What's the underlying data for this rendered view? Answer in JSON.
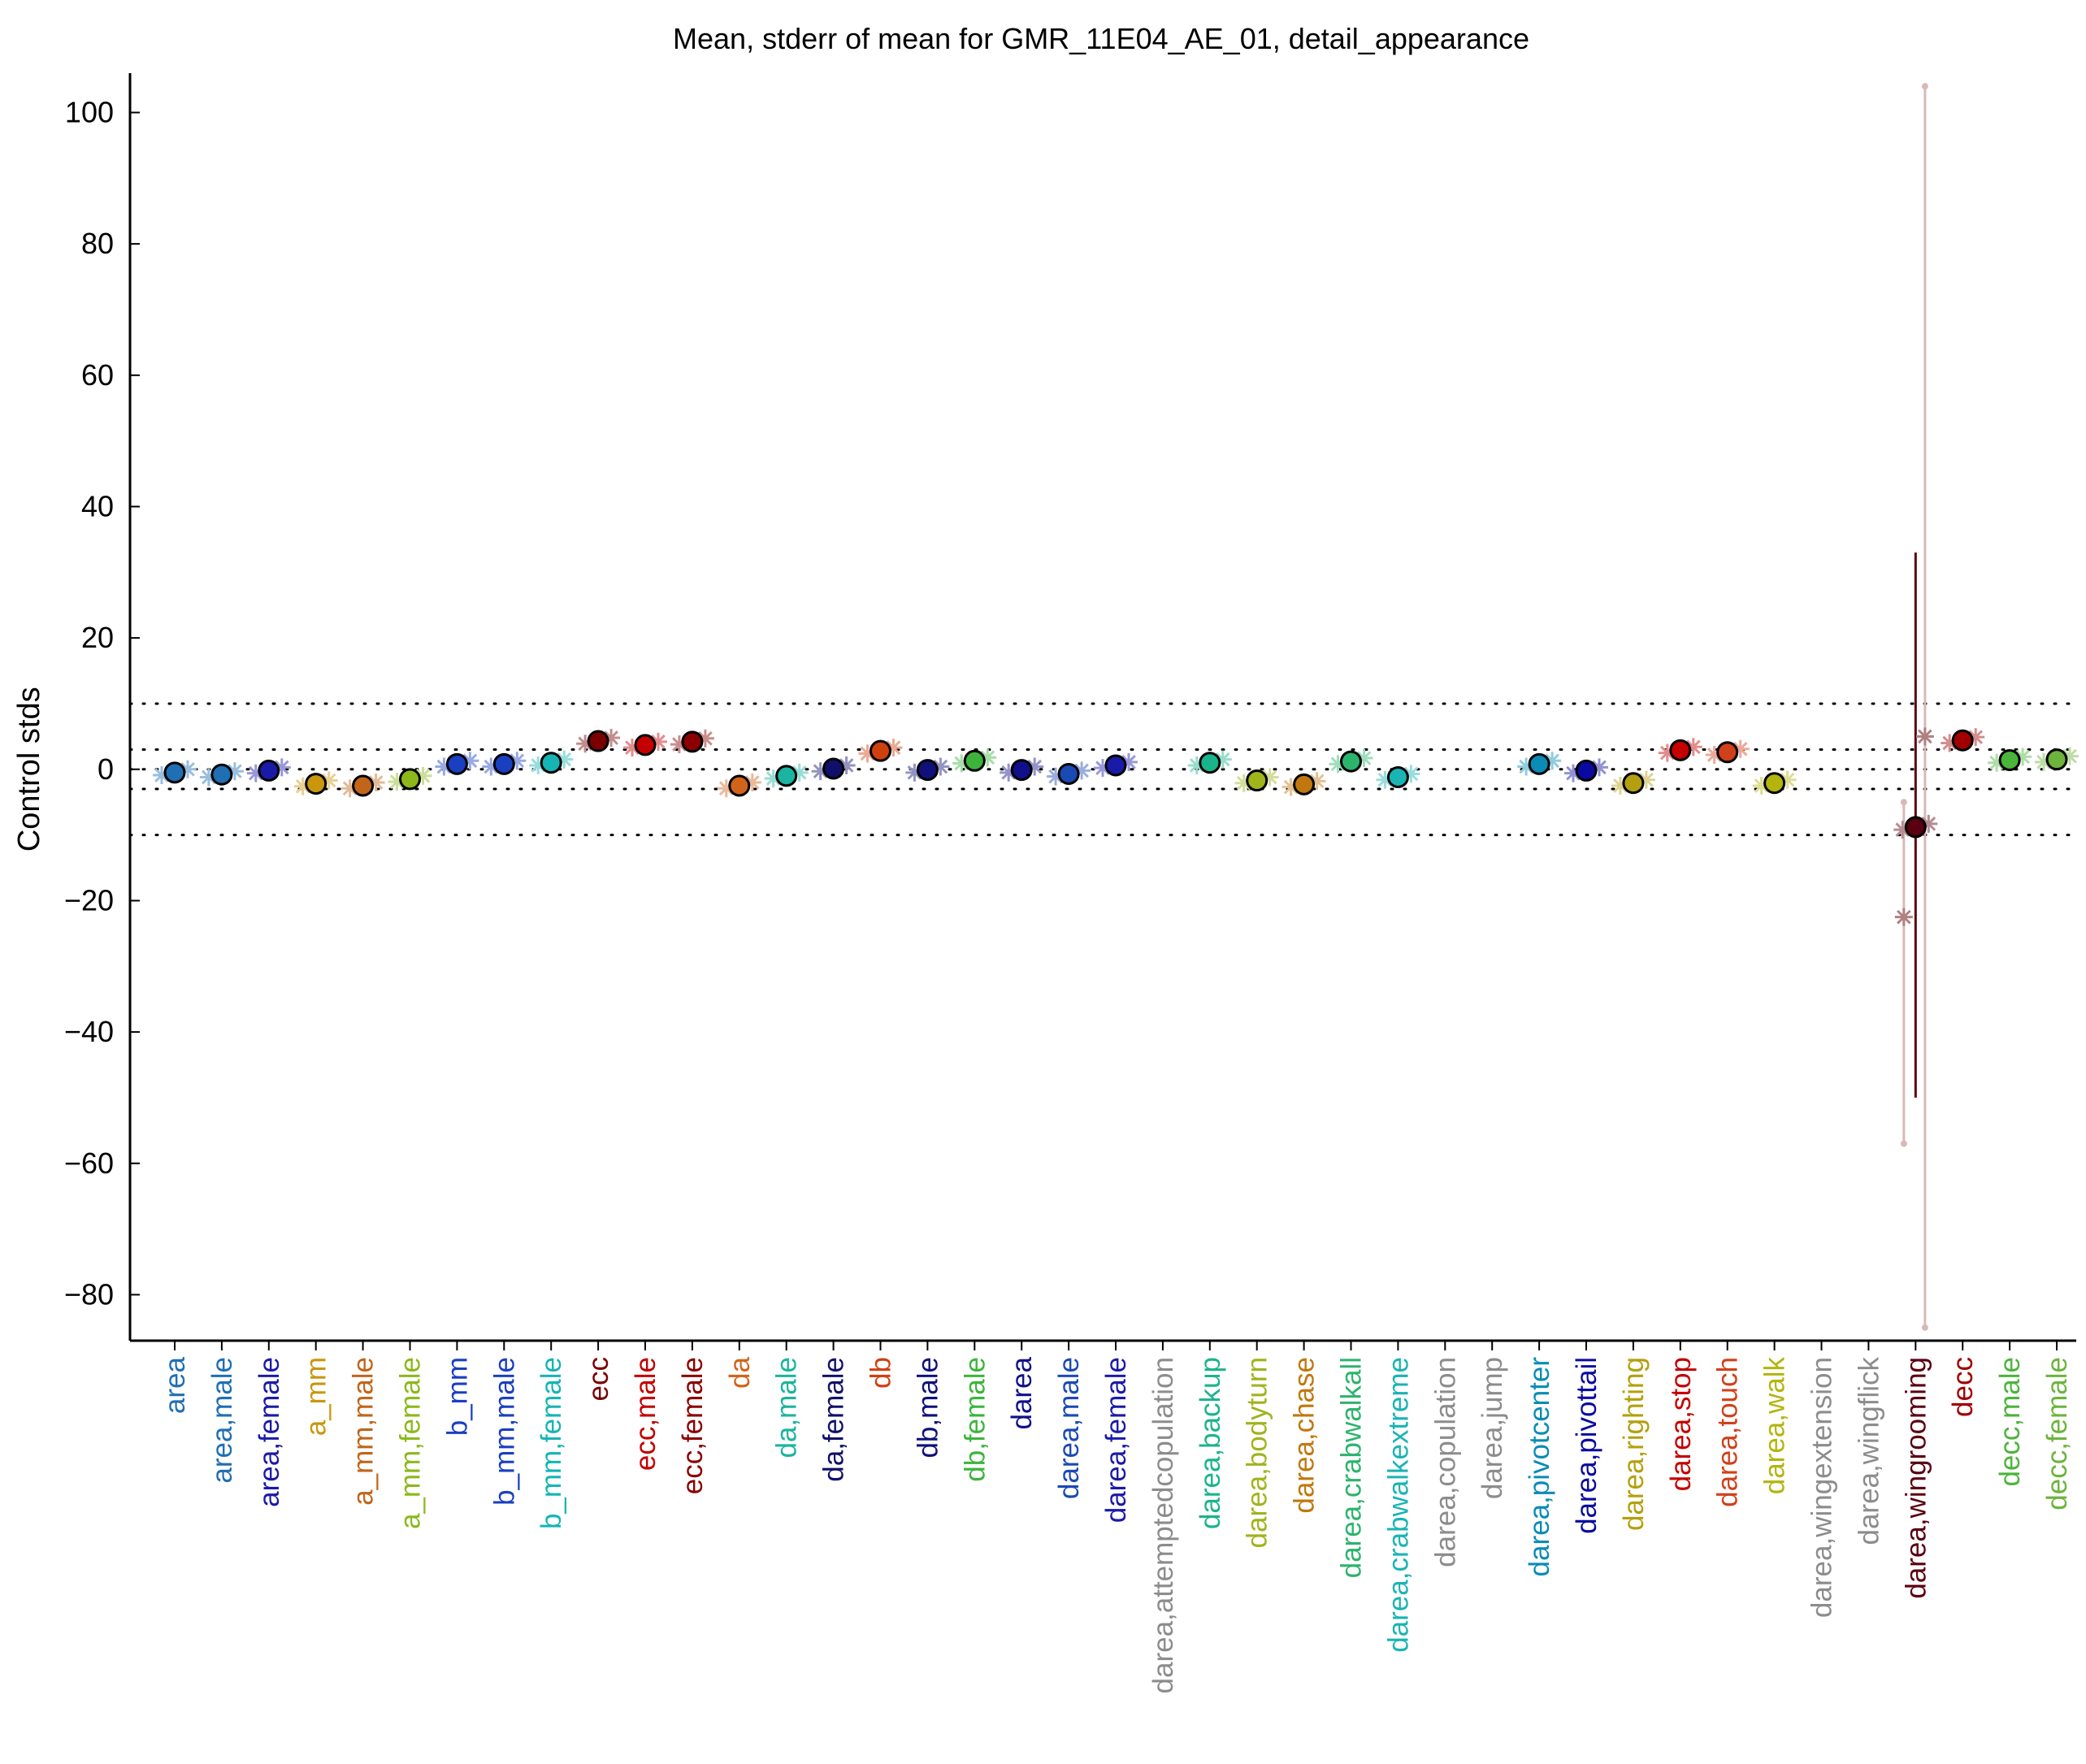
{
  "chart_data": {
    "type": "scatter",
    "title": "Mean, stderr of mean for GMR_11E04_AE_01, detail_appearance",
    "xlabel": "",
    "ylabel": "Control stds",
    "ylim": [
      -87,
      106
    ],
    "yticks": [
      -80,
      -60,
      -40,
      -20,
      0,
      20,
      40,
      60,
      80,
      100
    ],
    "reference_lines": [
      -10,
      -3,
      0,
      3,
      10
    ],
    "grid": false,
    "categories": [
      "area",
      "area,male",
      "area,female",
      "a_mm",
      "a_mm,male",
      "a_mm,female",
      "b_mm",
      "b_mm,male",
      "b_mm,female",
      "ecc",
      "ecc,male",
      "ecc,female",
      "da",
      "da,male",
      "da,female",
      "db",
      "db,male",
      "db,female",
      "darea",
      "darea,male",
      "darea,female",
      "darea,attemptedcopulation",
      "darea,backup",
      "darea,bodyturn",
      "darea,chase",
      "darea,crabwalkall",
      "darea,crabwalkextreme",
      "darea,copulation",
      "darea,jump",
      "darea,pivotcenter",
      "darea,pivottail",
      "darea,righting",
      "darea,stop",
      "darea,touch",
      "darea,walk",
      "darea,wingextension",
      "darea,wingflick",
      "darea,wingrooming",
      "decc",
      "decc,male",
      "decc,female"
    ],
    "label_colors": [
      "#1f6fb4",
      "#1f6fb4",
      "#1a1aa8",
      "#c9960e",
      "#c0651a",
      "#8cb81c",
      "#1a3fc0",
      "#1a3fc0",
      "#16b4b4",
      "#7a0000",
      "#c40000",
      "#8a0000",
      "#d0641a",
      "#1ab4a0",
      "#10106a",
      "#d0400e",
      "#10107a",
      "#3cb43c",
      "#10108a",
      "#1a4ab4",
      "#1a1aa8",
      "#8c8c8c",
      "#1ab48c",
      "#a0b41c",
      "#c0780e",
      "#2cb46c",
      "#1ab4b4",
      "#8c8c8c",
      "#8c8c8c",
      "#0a8cb4",
      "#0a0aa0",
      "#b4a00e",
      "#c40000",
      "#d0401a",
      "#b4b40e",
      "#8c8c8c",
      "#8c8c8c",
      "#5a0010",
      "#a00000",
      "#4cb43c",
      "#6cb43c"
    ],
    "means": [
      -0.5,
      -0.8,
      -0.2,
      -2.2,
      -2.5,
      -1.5,
      0.8,
      0.8,
      1.0,
      4.3,
      3.7,
      4.2,
      -2.5,
      -1.0,
      0.1,
      2.8,
      -0.1,
      1.3,
      -0.1,
      -0.7,
      0.6,
      null,
      1.0,
      -1.7,
      -2.3,
      1.2,
      -1.2,
      null,
      null,
      0.8,
      -0.2,
      -2.1,
      2.9,
      2.6,
      -2.1,
      null,
      null,
      -8.8,
      4.4,
      1.4,
      1.5
    ],
    "stderr": [
      0.5,
      0.5,
      0.4,
      0.5,
      0.6,
      0.5,
      0.4,
      0.4,
      0.5,
      0.7,
      0.7,
      0.6,
      0.7,
      0.5,
      0.4,
      0.8,
      0.4,
      0.5,
      0.4,
      0.4,
      0.4,
      null,
      0.5,
      0.6,
      0.6,
      0.5,
      0.7,
      null,
      null,
      0.4,
      0.4,
      0.6,
      0.6,
      0.6,
      0.6,
      null,
      null,
      41.8,
      0.9,
      0.5,
      0.6
    ],
    "individual_lines": [
      {
        "x": 37,
        "offset": -0.25,
        "low": -57,
        "high": -5,
        "value": -22.5
      },
      {
        "x": 37,
        "offset": 0.2,
        "low": -85,
        "high": 104,
        "value": 5
      }
    ],
    "wide_error_range": [
      -50,
      33
    ]
  }
}
